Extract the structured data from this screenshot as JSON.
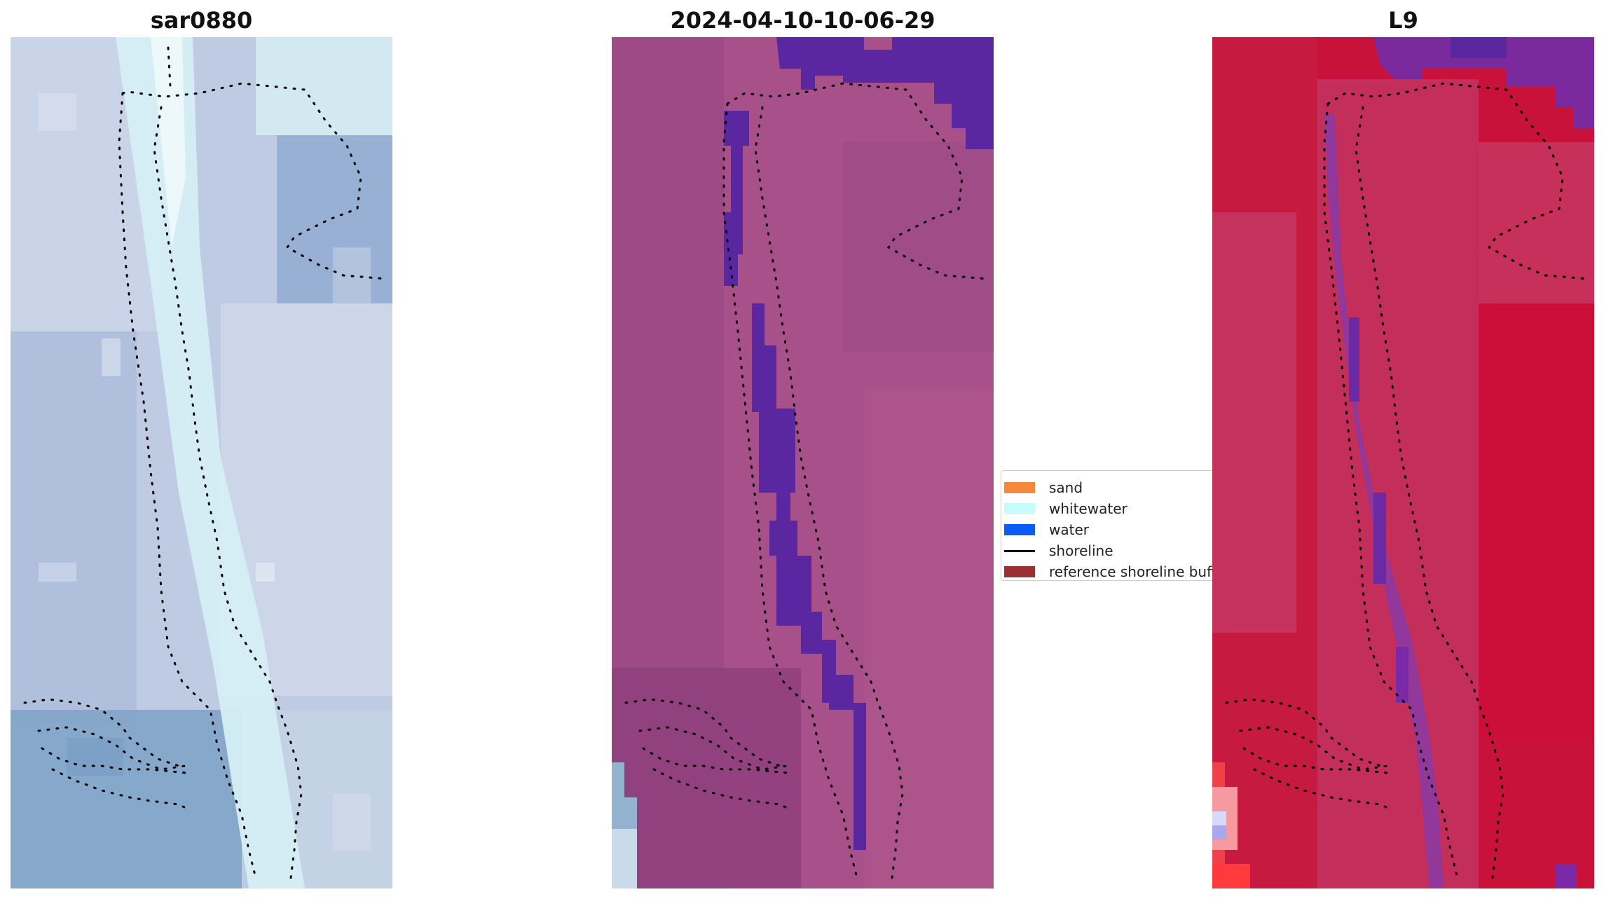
{
  "panels": [
    {
      "title": "sar0880",
      "style": "satellite-rgb",
      "base_color": "#bcc8e0"
    },
    {
      "title": "2024-04-10-10-06-29",
      "style": "classification",
      "base_color": "#a8508a"
    },
    {
      "title": "L9",
      "style": "index-map",
      "base_color": "#c8123a"
    }
  ],
  "legend": {
    "items": [
      {
        "label": "sand",
        "kind": "patch",
        "color": "#f5883a"
      },
      {
        "label": "whitewater",
        "kind": "patch",
        "color": "#c8fcfc"
      },
      {
        "label": "water",
        "kind": "patch",
        "color": "#0a5cf5"
      },
      {
        "label": "shoreline",
        "kind": "line",
        "color": "#000000"
      },
      {
        "label": "reference shoreline buffer",
        "kind": "patch",
        "color": "#983036"
      }
    ]
  },
  "colors": {
    "water_class": "#5b27a0",
    "shoreline_dots": "#000000"
  }
}
